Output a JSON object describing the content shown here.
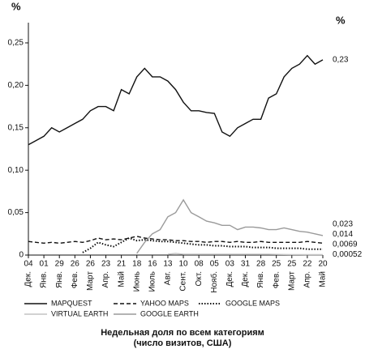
{
  "chart_data": {
    "type": "line",
    "y_unit": "%",
    "caption": [
      "Недельная доля по всем категориям",
      "(число визитов, США)"
    ],
    "categories": [
      {
        "day": "04",
        "month": "Дек."
      },
      null,
      {
        "day": "01",
        "month": "Янв."
      },
      null,
      {
        "day": "29",
        "month": "Янв."
      },
      null,
      {
        "day": "26",
        "month": "Фев."
      },
      null,
      {
        "day": "26",
        "month": "Март"
      },
      null,
      {
        "day": "23",
        "month": "Апр."
      },
      null,
      {
        "day": "21",
        "month": "Май"
      },
      null,
      {
        "day": "18",
        "month": "Июнь"
      },
      null,
      {
        "day": "16",
        "month": "Июль"
      },
      null,
      {
        "day": "13",
        "month": "Авг."
      },
      null,
      {
        "day": "10",
        "month": "Сент."
      },
      null,
      {
        "day": "08",
        "month": "Окт."
      },
      null,
      {
        "day": "05",
        "month": "Нояб."
      },
      null,
      {
        "day": "03",
        "month": "Дек."
      },
      null,
      {
        "day": "31",
        "month": "Дек."
      },
      null,
      {
        "day": "28",
        "month": "Янв."
      },
      null,
      {
        "day": "25",
        "month": "Фев."
      },
      null,
      {
        "day": "25",
        "month": "Март"
      },
      null,
      {
        "day": "22",
        "month": "Апр."
      },
      null,
      {
        "day": "20",
        "month": "Май"
      }
    ],
    "ylim": [
      0,
      0.27
    ],
    "yticks": [
      0,
      {
        "value": 0.05,
        "label": "0,05"
      },
      {
        "value": 0.1,
        "label": "0,10"
      },
      {
        "value": 0.15,
        "label": "0,15"
      },
      {
        "value": 0.2,
        "label": "0,20"
      },
      {
        "value": 0.25,
        "label": "0,25"
      }
    ],
    "grid": false,
    "series": [
      {
        "name": "MAPQUEST",
        "color": "#111111",
        "dash": "solid",
        "values": [
          0.13,
          0.135,
          0.14,
          0.15,
          0.145,
          0.15,
          0.155,
          0.16,
          0.17,
          0.175,
          0.175,
          0.17,
          0.195,
          0.19,
          0.21,
          0.22,
          0.21,
          0.21,
          0.205,
          0.195,
          0.18,
          0.17,
          0.17,
          0.168,
          0.167,
          0.145,
          0.14,
          0.15,
          0.155,
          0.16,
          0.16,
          0.185,
          0.19,
          0.21,
          0.22,
          0.225,
          0.235,
          0.225,
          0.23
        ],
        "value_labels": [
          null,
          null,
          null,
          null,
          null,
          null,
          null,
          null,
          null,
          null,
          null,
          null,
          null,
          null,
          null,
          null,
          null,
          null,
          null,
          null,
          null,
          null,
          null,
          null,
          null,
          null,
          null,
          null,
          null,
          null,
          null,
          null,
          null,
          null,
          null,
          null,
          null,
          null,
          "0,23"
        ]
      },
      {
        "name": "YAHOO MAPS",
        "color": "#111111",
        "dash": "dashed",
        "values": [
          0.016,
          0.015,
          0.014,
          0.015,
          0.014,
          0.015,
          0.016,
          0.015,
          0.017,
          0.02,
          0.018,
          0.019,
          0.018,
          0.02,
          0.022,
          0.02,
          0.019,
          0.018,
          0.018,
          0.017,
          0.017,
          0.016,
          0.016,
          0.015,
          0.016,
          0.016,
          0.015,
          0.016,
          0.015,
          0.015,
          0.016,
          0.015,
          0.015,
          0.015,
          0.015,
          0.015,
          0.016,
          0.015,
          0.014
        ],
        "value_labels": [
          null,
          null,
          null,
          null,
          null,
          null,
          null,
          null,
          null,
          null,
          null,
          null,
          null,
          null,
          null,
          null,
          null,
          null,
          null,
          null,
          null,
          null,
          null,
          null,
          null,
          null,
          null,
          null,
          null,
          null,
          null,
          null,
          null,
          null,
          null,
          null,
          null,
          null,
          "0,014"
        ]
      },
      {
        "name": "GOOGLE MAPS",
        "color": "#111111",
        "dash": "dotted",
        "values": [
          null,
          null,
          null,
          null,
          null,
          null,
          null,
          0.003,
          0.008,
          0.015,
          0.012,
          0.01,
          0.015,
          0.02,
          0.017,
          0.018,
          0.017,
          0.016,
          0.016,
          0.015,
          0.014,
          0.013,
          0.012,
          0.012,
          0.011,
          0.011,
          0.01,
          0.01,
          0.01,
          0.009,
          0.009,
          0.009,
          0.008,
          0.008,
          0.008,
          0.008,
          0.007,
          0.007,
          0.0069
        ],
        "value_labels": [
          null,
          null,
          null,
          null,
          null,
          null,
          null,
          null,
          null,
          null,
          null,
          null,
          null,
          null,
          null,
          null,
          null,
          null,
          null,
          null,
          null,
          null,
          null,
          null,
          null,
          null,
          null,
          null,
          null,
          null,
          null,
          null,
          null,
          null,
          null,
          null,
          null,
          null,
          "0,0069"
        ]
      },
      {
        "name": "VIRTUAL EARTH",
        "color": "#c4c4c4",
        "dash": "solid",
        "values": [
          null,
          null,
          null,
          null,
          null,
          null,
          null,
          null,
          null,
          null,
          null,
          null,
          null,
          null,
          null,
          null,
          null,
          null,
          0.001,
          0.002,
          0.001,
          0.001,
          0.001,
          0.001,
          0.001,
          0.001,
          0.001,
          0.001,
          0.001,
          0.001,
          0.001,
          0.001,
          0.0008,
          0.0007,
          0.0006,
          0.0006,
          0.0005,
          0.0005,
          0.00052
        ],
        "value_labels": [
          null,
          null,
          null,
          null,
          null,
          null,
          null,
          null,
          null,
          null,
          null,
          null,
          null,
          null,
          null,
          null,
          null,
          null,
          null,
          null,
          null,
          null,
          null,
          null,
          null,
          null,
          null,
          null,
          null,
          null,
          null,
          null,
          null,
          null,
          null,
          null,
          null,
          null,
          "0,00052"
        ]
      },
      {
        "name": "GOOGLE EARTH",
        "color": "#9a9a9a",
        "dash": "solid",
        "values": [
          null,
          null,
          null,
          null,
          null,
          null,
          null,
          null,
          null,
          null,
          null,
          null,
          null,
          null,
          0.002,
          0.015,
          0.025,
          0.03,
          0.045,
          0.05,
          0.065,
          0.05,
          0.045,
          0.04,
          0.038,
          0.035,
          0.035,
          0.03,
          0.033,
          0.033,
          0.032,
          0.03,
          0.03,
          0.032,
          0.03,
          0.028,
          0.027,
          0.025,
          0.023
        ],
        "value_labels": [
          null,
          null,
          null,
          null,
          null,
          null,
          null,
          null,
          null,
          null,
          null,
          null,
          null,
          null,
          null,
          null,
          null,
          null,
          null,
          null,
          null,
          null,
          null,
          null,
          null,
          null,
          null,
          null,
          null,
          null,
          null,
          null,
          null,
          null,
          null,
          null,
          null,
          null,
          "0,023"
        ]
      }
    ]
  }
}
